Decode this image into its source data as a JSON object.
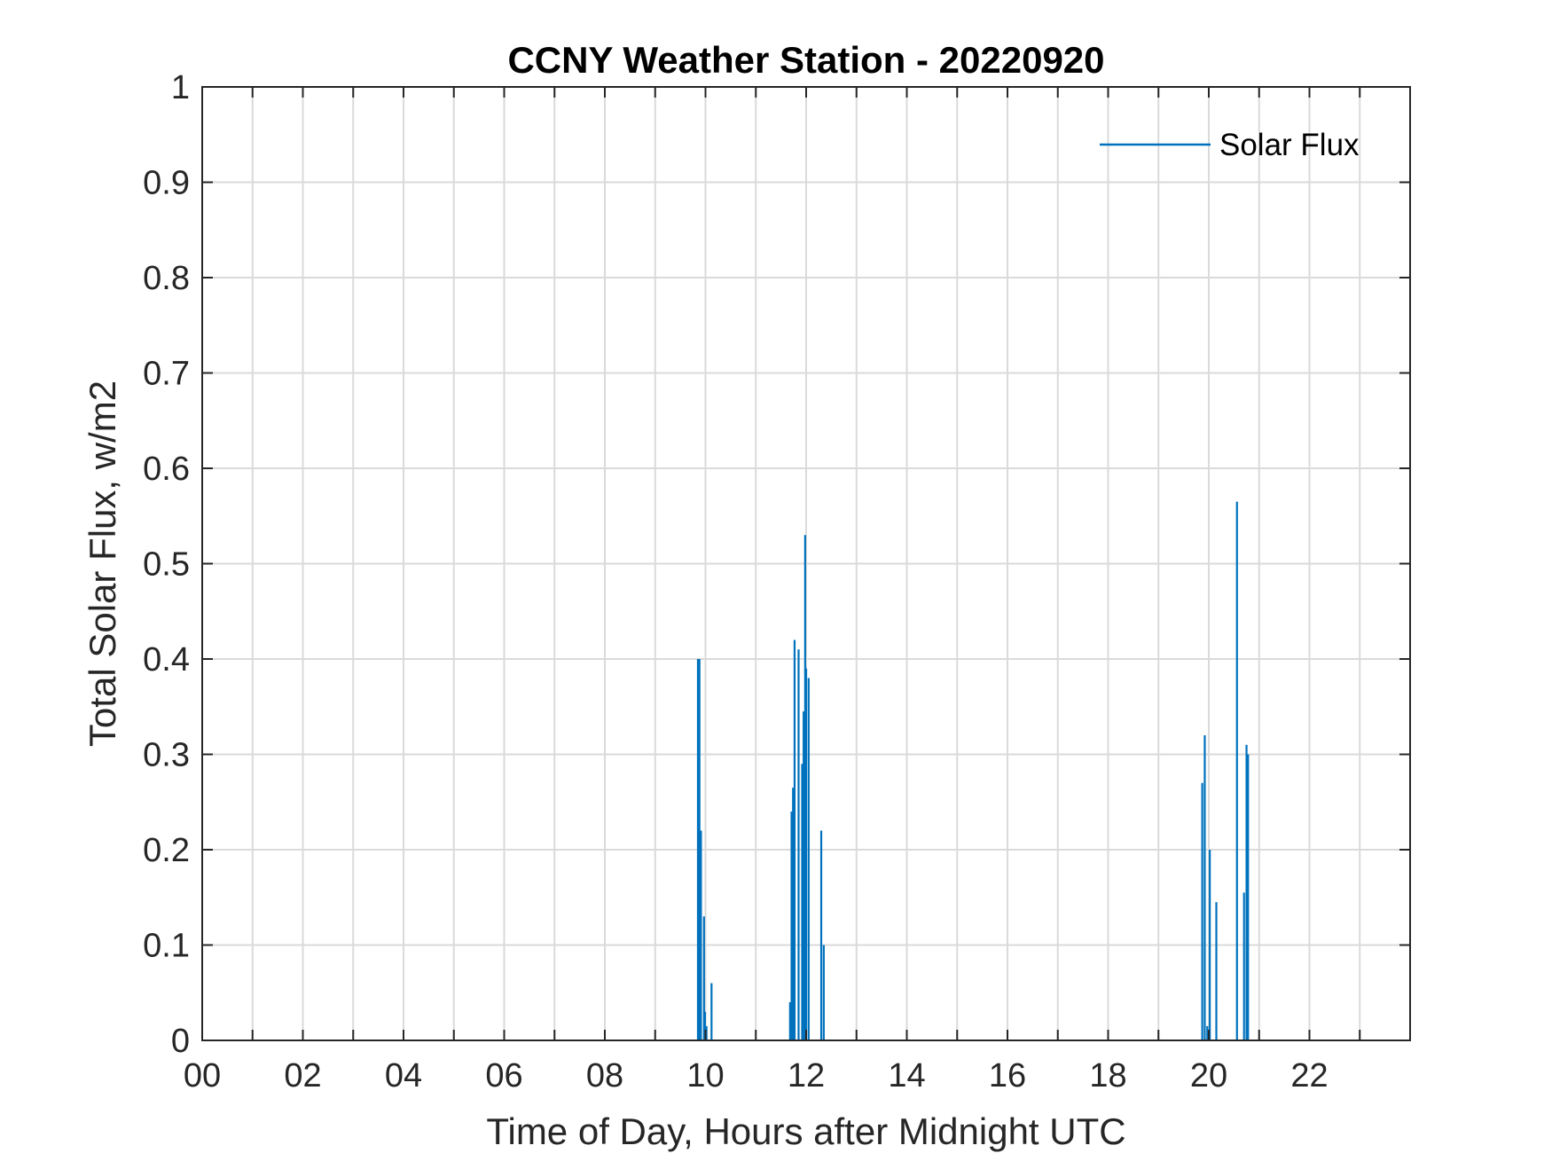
{
  "chart_data": {
    "type": "line",
    "title": "CCNY Weather Station - 20220920",
    "xlabel": "Time of Day, Hours after Midnight UTC",
    "ylabel": "Total Solar Flux, w/m2",
    "xlim": [
      0,
      24
    ],
    "ylim": [
      0,
      1
    ],
    "grid": true,
    "legend_position": "top-right",
    "x_ticks": [
      0,
      2,
      4,
      6,
      8,
      10,
      12,
      14,
      16,
      18,
      20,
      22
    ],
    "x_tick_labels": [
      "00",
      "02",
      "04",
      "06",
      "08",
      "10",
      "12",
      "14",
      "16",
      "18",
      "20",
      "22"
    ],
    "y_ticks": [
      0,
      0.1,
      0.2,
      0.3,
      0.4,
      0.5,
      0.6,
      0.7,
      0.8,
      0.9,
      1
    ],
    "y_tick_labels": [
      "0",
      "0.1",
      "0.2",
      "0.3",
      "0.4",
      "0.5",
      "0.6",
      "0.7",
      "0.8",
      "0.9",
      "1"
    ],
    "series": [
      {
        "name": "Solar Flux",
        "color": "#0072BD",
        "spikes": [
          [
            9.85,
            0.4
          ],
          [
            9.88,
            0.4
          ],
          [
            9.91,
            0.22
          ],
          [
            9.97,
            0.13
          ],
          [
            9.99,
            0.03
          ],
          [
            10.02,
            0.015
          ],
          [
            10.12,
            0.06
          ],
          [
            11.68,
            0.04
          ],
          [
            11.71,
            0.24
          ],
          [
            11.74,
            0.265
          ],
          [
            11.77,
            0.42
          ],
          [
            11.85,
            0.41
          ],
          [
            11.92,
            0.29
          ],
          [
            11.95,
            0.345
          ],
          [
            11.98,
            0.53
          ],
          [
            12.0,
            0.39
          ],
          [
            12.05,
            0.38
          ],
          [
            12.3,
            0.22
          ],
          [
            12.35,
            0.1
          ],
          [
            19.87,
            0.27
          ],
          [
            19.92,
            0.32
          ],
          [
            19.97,
            0.015
          ],
          [
            20.02,
            0.2
          ],
          [
            20.15,
            0.145
          ],
          [
            20.56,
            0.565
          ],
          [
            20.7,
            0.155
          ],
          [
            20.75,
            0.31
          ],
          [
            20.78,
            0.3
          ]
        ]
      }
    ]
  }
}
